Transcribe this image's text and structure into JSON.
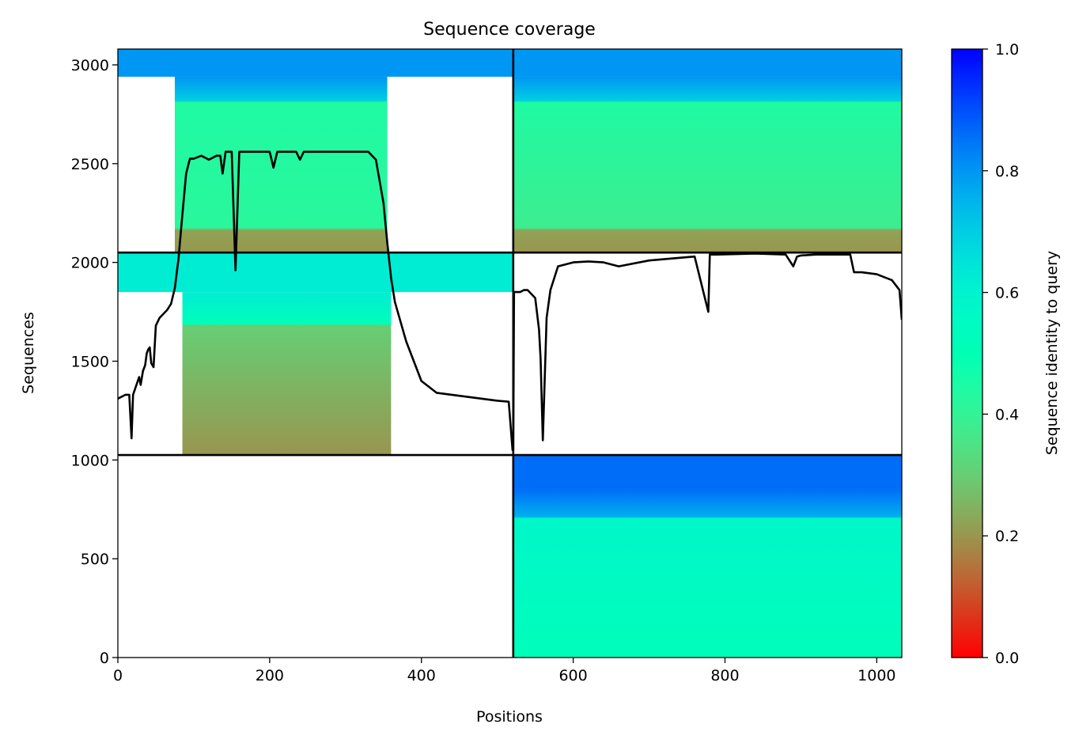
{
  "chart_data": {
    "type": "heatmap",
    "title": "Sequence coverage",
    "xlabel": "Positions",
    "ylabel": "Sequences",
    "xlim": [
      0,
      1033
    ],
    "ylim": [
      0,
      3080
    ],
    "x_ticks": [
      0,
      200,
      400,
      600,
      800,
      1000
    ],
    "y_ticks": [
      0,
      500,
      1000,
      1500,
      2000,
      2500,
      3000
    ],
    "grid": false,
    "colorbar": {
      "label": "Sequence identity to query",
      "colormap": "rainbow_r",
      "range": [
        0,
        1
      ],
      "ticks": [
        0.0,
        0.2,
        0.4,
        0.6,
        0.8,
        1.0
      ],
      "tick_labels": [
        "0.0",
        "0.2",
        "0.4",
        "0.6",
        "0.8",
        "1.0"
      ]
    },
    "chain_boundaries_x": [
      521
    ],
    "chain_boundaries_y": [
      1025,
      2050
    ],
    "blocks": [
      {
        "name": "bottom-left",
        "x": [
          0,
          521
        ],
        "y": [
          0,
          1025
        ],
        "identity": null
      },
      {
        "name": "bottom-right",
        "x": [
          521,
          1033
        ],
        "y": [
          0,
          1025
        ],
        "identity_bottom": 0.52,
        "identity_top": 0.58,
        "header_rows": 170,
        "header_identity": 0.86
      },
      {
        "name": "middle-left",
        "x": [
          0,
          521
        ],
        "y": [
          1025,
          2050
        ],
        "cover_x": [
          85,
          360
        ],
        "identity_bottom": 0.2,
        "identity_top": 0.3,
        "header_rows": 200,
        "header_identity": 0.62
      },
      {
        "name": "middle-right",
        "x": [
          521,
          1033
        ],
        "y": [
          1025,
          2050
        ],
        "identity": null
      },
      {
        "name": "top-left",
        "x": [
          0,
          521
        ],
        "y": [
          2050,
          3080
        ],
        "cover_x": [
          75,
          355
        ],
        "identity_bottom": 0.2,
        "identity_mid": 0.42,
        "identity_top": 0.44,
        "lower_rows": 130,
        "header_rows": 140,
        "header_identity": 0.8
      },
      {
        "name": "top-right",
        "x": [
          521,
          1033
        ],
        "y": [
          2050,
          3080
        ],
        "cover_x": [
          521,
          1033
        ],
        "identity_bottom": 0.2,
        "identity_mid": 0.38,
        "identity_top": 0.44,
        "lower_rows": 130,
        "header_rows": 140,
        "header_identity": 0.8
      }
    ],
    "coverage_line": {
      "color": "#000000",
      "x": [
        0,
        10,
        15,
        18,
        20,
        28,
        30,
        33,
        36,
        38,
        40,
        42,
        44,
        47,
        50,
        55,
        60,
        65,
        70,
        75,
        80,
        85,
        90,
        95,
        100,
        110,
        120,
        130,
        135,
        138,
        142,
        145,
        150,
        155,
        160,
        170,
        190,
        200,
        205,
        210,
        220,
        235,
        240,
        245,
        250,
        280,
        300,
        330,
        340,
        350,
        355,
        360,
        365,
        380,
        400,
        420,
        440,
        460,
        480,
        500,
        515,
        520,
        521,
        522,
        525,
        530,
        535,
        540,
        550,
        555,
        557,
        560,
        565,
        570,
        580,
        600,
        620,
        640,
        660,
        700,
        760,
        778,
        780,
        790,
        840,
        880,
        890,
        895,
        900,
        920,
        950,
        965,
        970,
        980,
        1000,
        1020,
        1030,
        1033
      ],
      "y": [
        1310,
        1330,
        1330,
        1110,
        1330,
        1420,
        1380,
        1450,
        1480,
        1540,
        1560,
        1570,
        1490,
        1470,
        1680,
        1720,
        1740,
        1760,
        1790,
        1870,
        2020,
        2240,
        2450,
        2525,
        2525,
        2540,
        2520,
        2540,
        2540,
        2450,
        2560,
        2560,
        2560,
        1960,
        2560,
        2560,
        2560,
        2560,
        2480,
        2560,
        2560,
        2560,
        2520,
        2560,
        2560,
        2560,
        2560,
        2560,
        2520,
        2300,
        2100,
        1920,
        1800,
        1600,
        1400,
        1340,
        1330,
        1320,
        1310,
        1300,
        1295,
        1050,
        1050,
        1850,
        1850,
        1850,
        1860,
        1860,
        1820,
        1660,
        1510,
        1100,
        1720,
        1860,
        1980,
        2000,
        2005,
        2000,
        1980,
        2010,
        2030,
        1750,
        2040,
        2040,
        2045,
        2040,
        1980,
        2030,
        2035,
        2040,
        2040,
        2040,
        1950,
        1950,
        1940,
        1910,
        1860,
        1710
      ]
    }
  }
}
